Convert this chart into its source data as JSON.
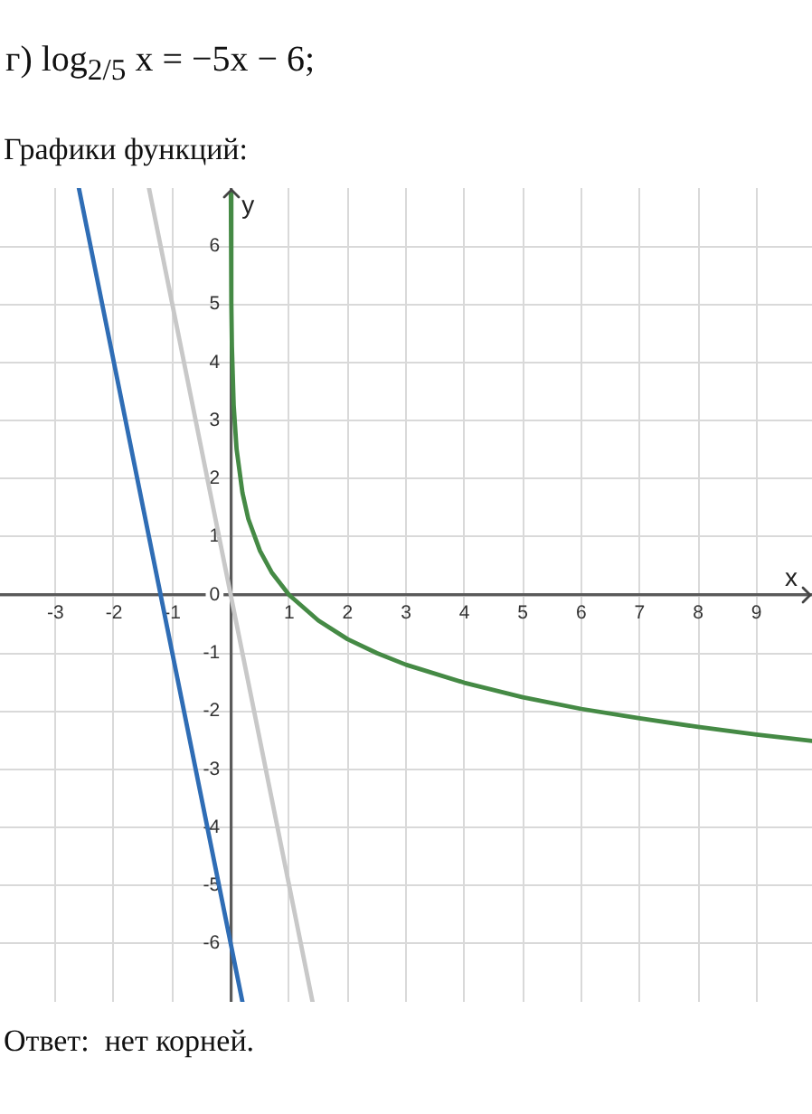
{
  "chart_data": {
    "type": "line",
    "title": "г) log$_{2/5}$ x = −5x − 6;",
    "subtitle": "Графики функций:",
    "xlabel": "x",
    "ylabel": "y",
    "annotations": [
      "Ответ:  нет корней."
    ],
    "series": [
      {
        "color": "#c8c8c8",
        "x": [
          -1.4,
          1.4
        ],
        "values": [
          7,
          -7
        ]
      },
      {
        "color": "#2f6db5",
        "x": [
          -2.6,
          0.2
        ],
        "values": [
          7,
          -7
        ]
      },
      {
        "color": "#458a45",
        "x": [
          0.0018,
          0.01,
          0.02,
          0.05,
          0.1,
          0.2,
          0.3,
          0.5,
          0.7,
          1,
          1.5,
          2,
          2.5,
          3,
          4,
          5,
          6,
          7,
          8,
          9,
          9.95
        ],
        "values": [
          6.9,
          5.03,
          4.27,
          3.27,
          2.51,
          1.76,
          1.31,
          0.76,
          0.39,
          0,
          -0.44,
          -0.76,
          -1.0,
          -1.2,
          -1.51,
          -1.76,
          -1.96,
          -2.12,
          -2.27,
          -2.4,
          -2.51
        ]
      }
    ],
    "xlim": [
      -3.95,
      9.95
    ],
    "ylim": [
      -7,
      7
    ],
    "xticks": [
      -3,
      -2,
      -1,
      {
        "value": 0,
        "label": null
      },
      1,
      2,
      3,
      4,
      5,
      6,
      7,
      8,
      9
    ],
    "yticks": [
      -6,
      -5,
      -4,
      -3,
      -2,
      -1,
      0,
      1,
      2,
      3,
      4,
      5,
      6
    ],
    "grid": true,
    "legend": false,
    "line_style": "solid"
  }
}
